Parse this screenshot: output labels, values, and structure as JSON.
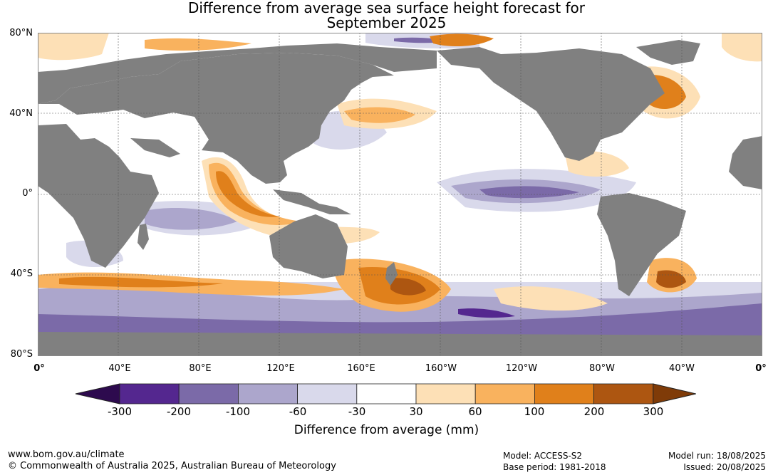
{
  "title": {
    "line1": "Difference from average sea surface height forecast for",
    "line2": "September 2025"
  },
  "map": {
    "lat_labels": [
      "80°N",
      "40°N",
      "0°",
      "40°S",
      "80°S"
    ],
    "lon_labels": [
      "0°",
      "40°E",
      "80°E",
      "120°E",
      "160°E",
      "160°W",
      "120°W",
      "80°W",
      "40°W",
      "0°"
    ],
    "land_color": "#808080",
    "ocean_base_color": "#ffffff"
  },
  "colorbar": {
    "tick_labels": [
      "-300",
      "-200",
      "-100",
      "-60",
      "-30",
      "30",
      "60",
      "100",
      "200",
      "300"
    ],
    "bins": [
      {
        "range": "< -300",
        "color": "#2d0a4e"
      },
      {
        "range": "-300 to -200",
        "color": "#54278f"
      },
      {
        "range": "-200 to -100",
        "color": "#7b6aa8"
      },
      {
        "range": "-100 to -60",
        "color": "#aca6cc"
      },
      {
        "range": "-60 to -30",
        "color": "#d9d9eb"
      },
      {
        "range": "-30 to 30",
        "color": "#ffffff"
      },
      {
        "range": "30 to 60",
        "color": "#fde0b6"
      },
      {
        "range": "60 to 100",
        "color": "#f9b25e"
      },
      {
        "range": "100 to 200",
        "color": "#e0801b"
      },
      {
        "range": "200 to 300",
        "color": "#ad5611"
      },
      {
        "range": "> 300",
        "color": "#7f3b08"
      }
    ],
    "label": "Difference from average (mm)"
  },
  "footer": {
    "website": "www.bom.gov.au/climate",
    "copyright": "© Commonwealth of Australia 2025, Australian Bureau of Meteorology",
    "model": "Model: ACCESS-S2",
    "base_period": "Base period: 1981-2018",
    "model_run": "Model run: 18/08/2025",
    "issued": "Issued: 20/08/2025"
  }
}
